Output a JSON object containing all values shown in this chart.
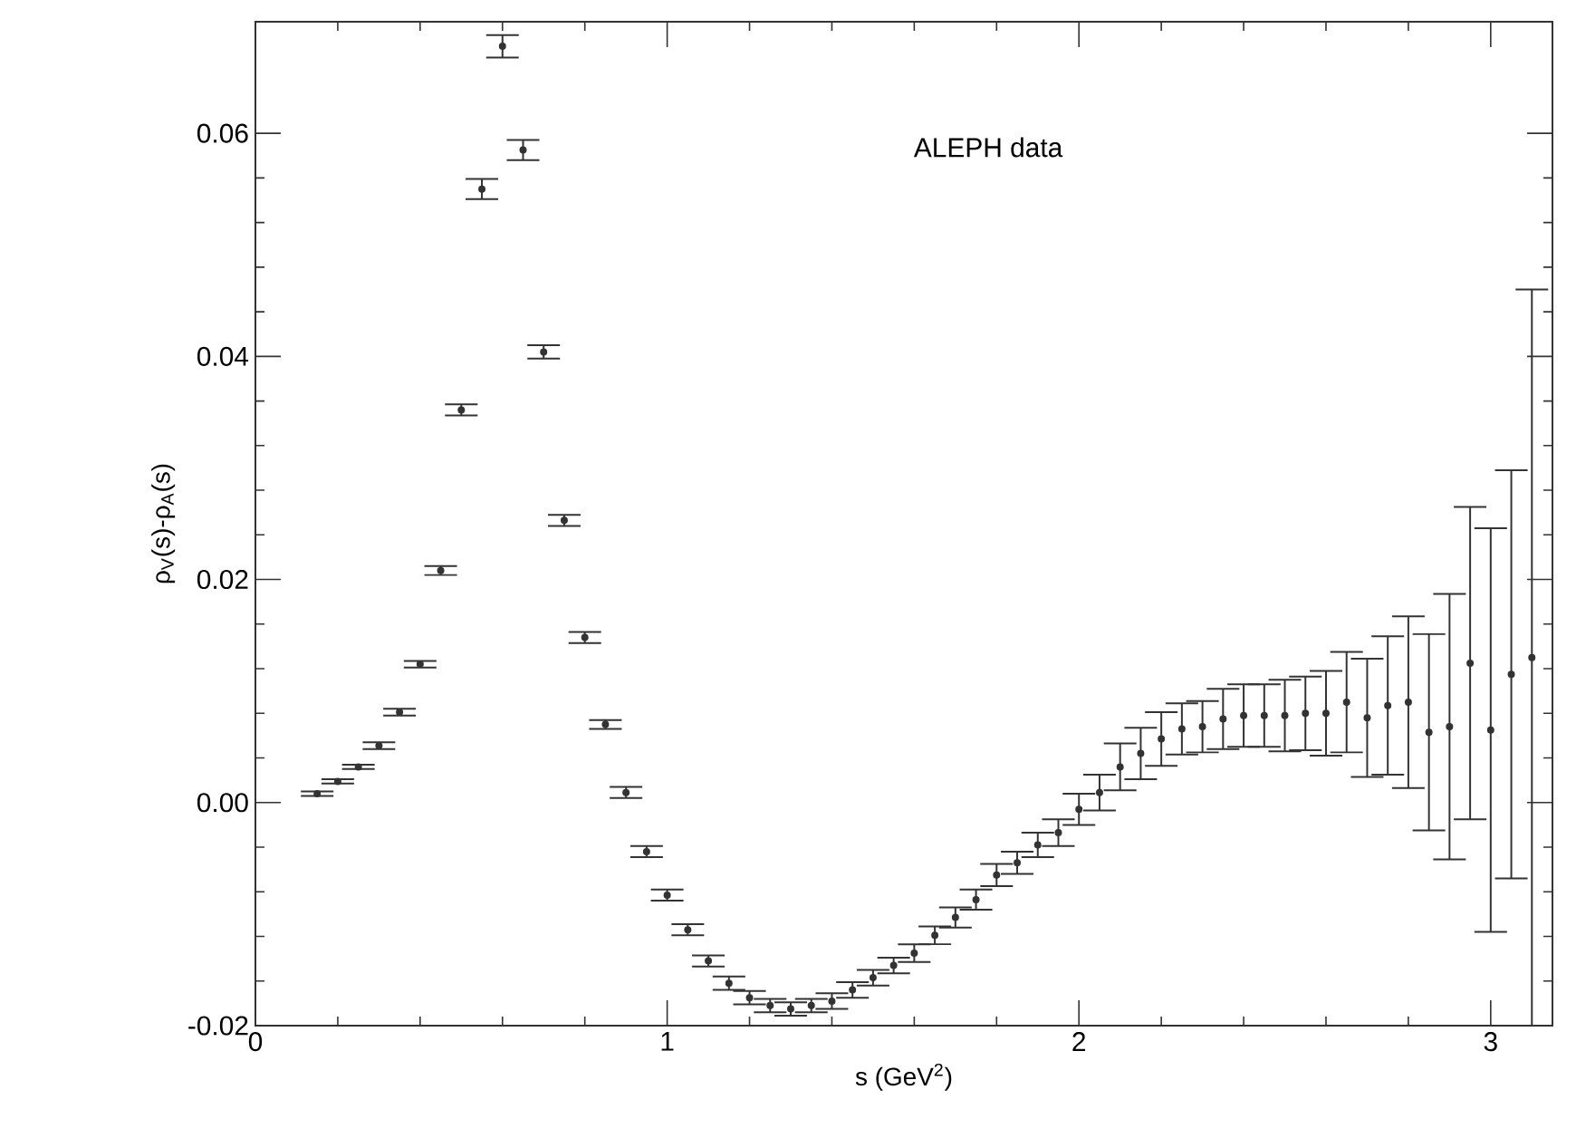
{
  "chart_data": {
    "type": "scatter",
    "marker": "circle",
    "color": "#333333",
    "xlabel": "s (GeV$^{2}$)",
    "ylabel": "ρ$_{V}$(s)-ρ$_{A}$(s)",
    "annotations": [
      "ALEPH data"
    ],
    "xlim": [
      0,
      3.15
    ],
    "ylim": [
      -0.02,
      0.07
    ],
    "xticks": [
      0,
      1,
      2,
      3
    ],
    "yticks": [
      -0.02,
      {
        "value": 0,
        "label": "0.00"
      },
      0.02,
      0.04,
      0.06
    ],
    "x": [
      0.15,
      0.2,
      0.25,
      0.3,
      0.35,
      0.4,
      0.45,
      0.5,
      0.55,
      0.6,
      0.65,
      0.7,
      0.75,
      0.8,
      0.85,
      0.9,
      0.95,
      1.0,
      1.05,
      1.1,
      1.15,
      1.2,
      1.25,
      1.3,
      1.35,
      1.4,
      1.45,
      1.5,
      1.55,
      1.6,
      1.65,
      1.7,
      1.75,
      1.8,
      1.85,
      1.9,
      1.95,
      2.0,
      2.05,
      2.1,
      2.15,
      2.2,
      2.25,
      2.3,
      2.35,
      2.4,
      2.45,
      2.5,
      2.55,
      2.6,
      2.65,
      2.7,
      2.75,
      2.8,
      2.85,
      2.9,
      2.95,
      3.0,
      3.05,
      3.1
    ],
    "values": [
      0.0008,
      0.0019,
      0.0032,
      0.0051,
      0.0081,
      0.0124,
      0.0208,
      0.0352,
      0.055,
      0.0678,
      0.0585,
      0.0404,
      0.0253,
      0.0148,
      0.007,
      0.0009,
      -0.0044,
      -0.0083,
      -0.0114,
      -0.0142,
      -0.0162,
      -0.0175,
      -0.0182,
      -0.0185,
      -0.0182,
      -0.0178,
      -0.0168,
      -0.0157,
      -0.0146,
      -0.0135,
      -0.0119,
      -0.0103,
      -0.0087,
      -0.0065,
      -0.0054,
      -0.0038,
      -0.0027,
      -0.0006,
      0.0009,
      0.0032,
      0.0044,
      0.0057,
      0.0066,
      0.0068,
      0.0075,
      0.0078,
      0.0078,
      0.0078,
      0.008,
      0.008,
      0.009,
      0.0076,
      0.0087,
      0.009,
      0.0063,
      0.0068,
      0.0125,
      0.0065,
      0.0115,
      0.013
    ],
    "errors": [
      0.0002,
      0.0002,
      0.0002,
      0.0003,
      0.0003,
      0.0003,
      0.0004,
      0.0005,
      0.0009,
      0.001,
      0.0009,
      0.0006,
      0.0005,
      0.0005,
      0.0004,
      0.0005,
      0.0005,
      0.0005,
      0.0005,
      0.0005,
      0.0006,
      0.0006,
      0.0006,
      0.0006,
      0.0006,
      0.0007,
      0.0007,
      0.0007,
      0.0007,
      0.0008,
      0.0008,
      0.0009,
      0.0009,
      0.001,
      0.001,
      0.0011,
      0.0012,
      0.0014,
      0.0016,
      0.0021,
      0.0023,
      0.0024,
      0.0023,
      0.0023,
      0.0027,
      0.0028,
      0.0028,
      0.0032,
      0.0033,
      0.0038,
      0.0045,
      0.0053,
      0.0062,
      0.0077,
      0.0088,
      0.0119,
      0.014,
      0.0181,
      0.0183,
      0.033
    ]
  }
}
